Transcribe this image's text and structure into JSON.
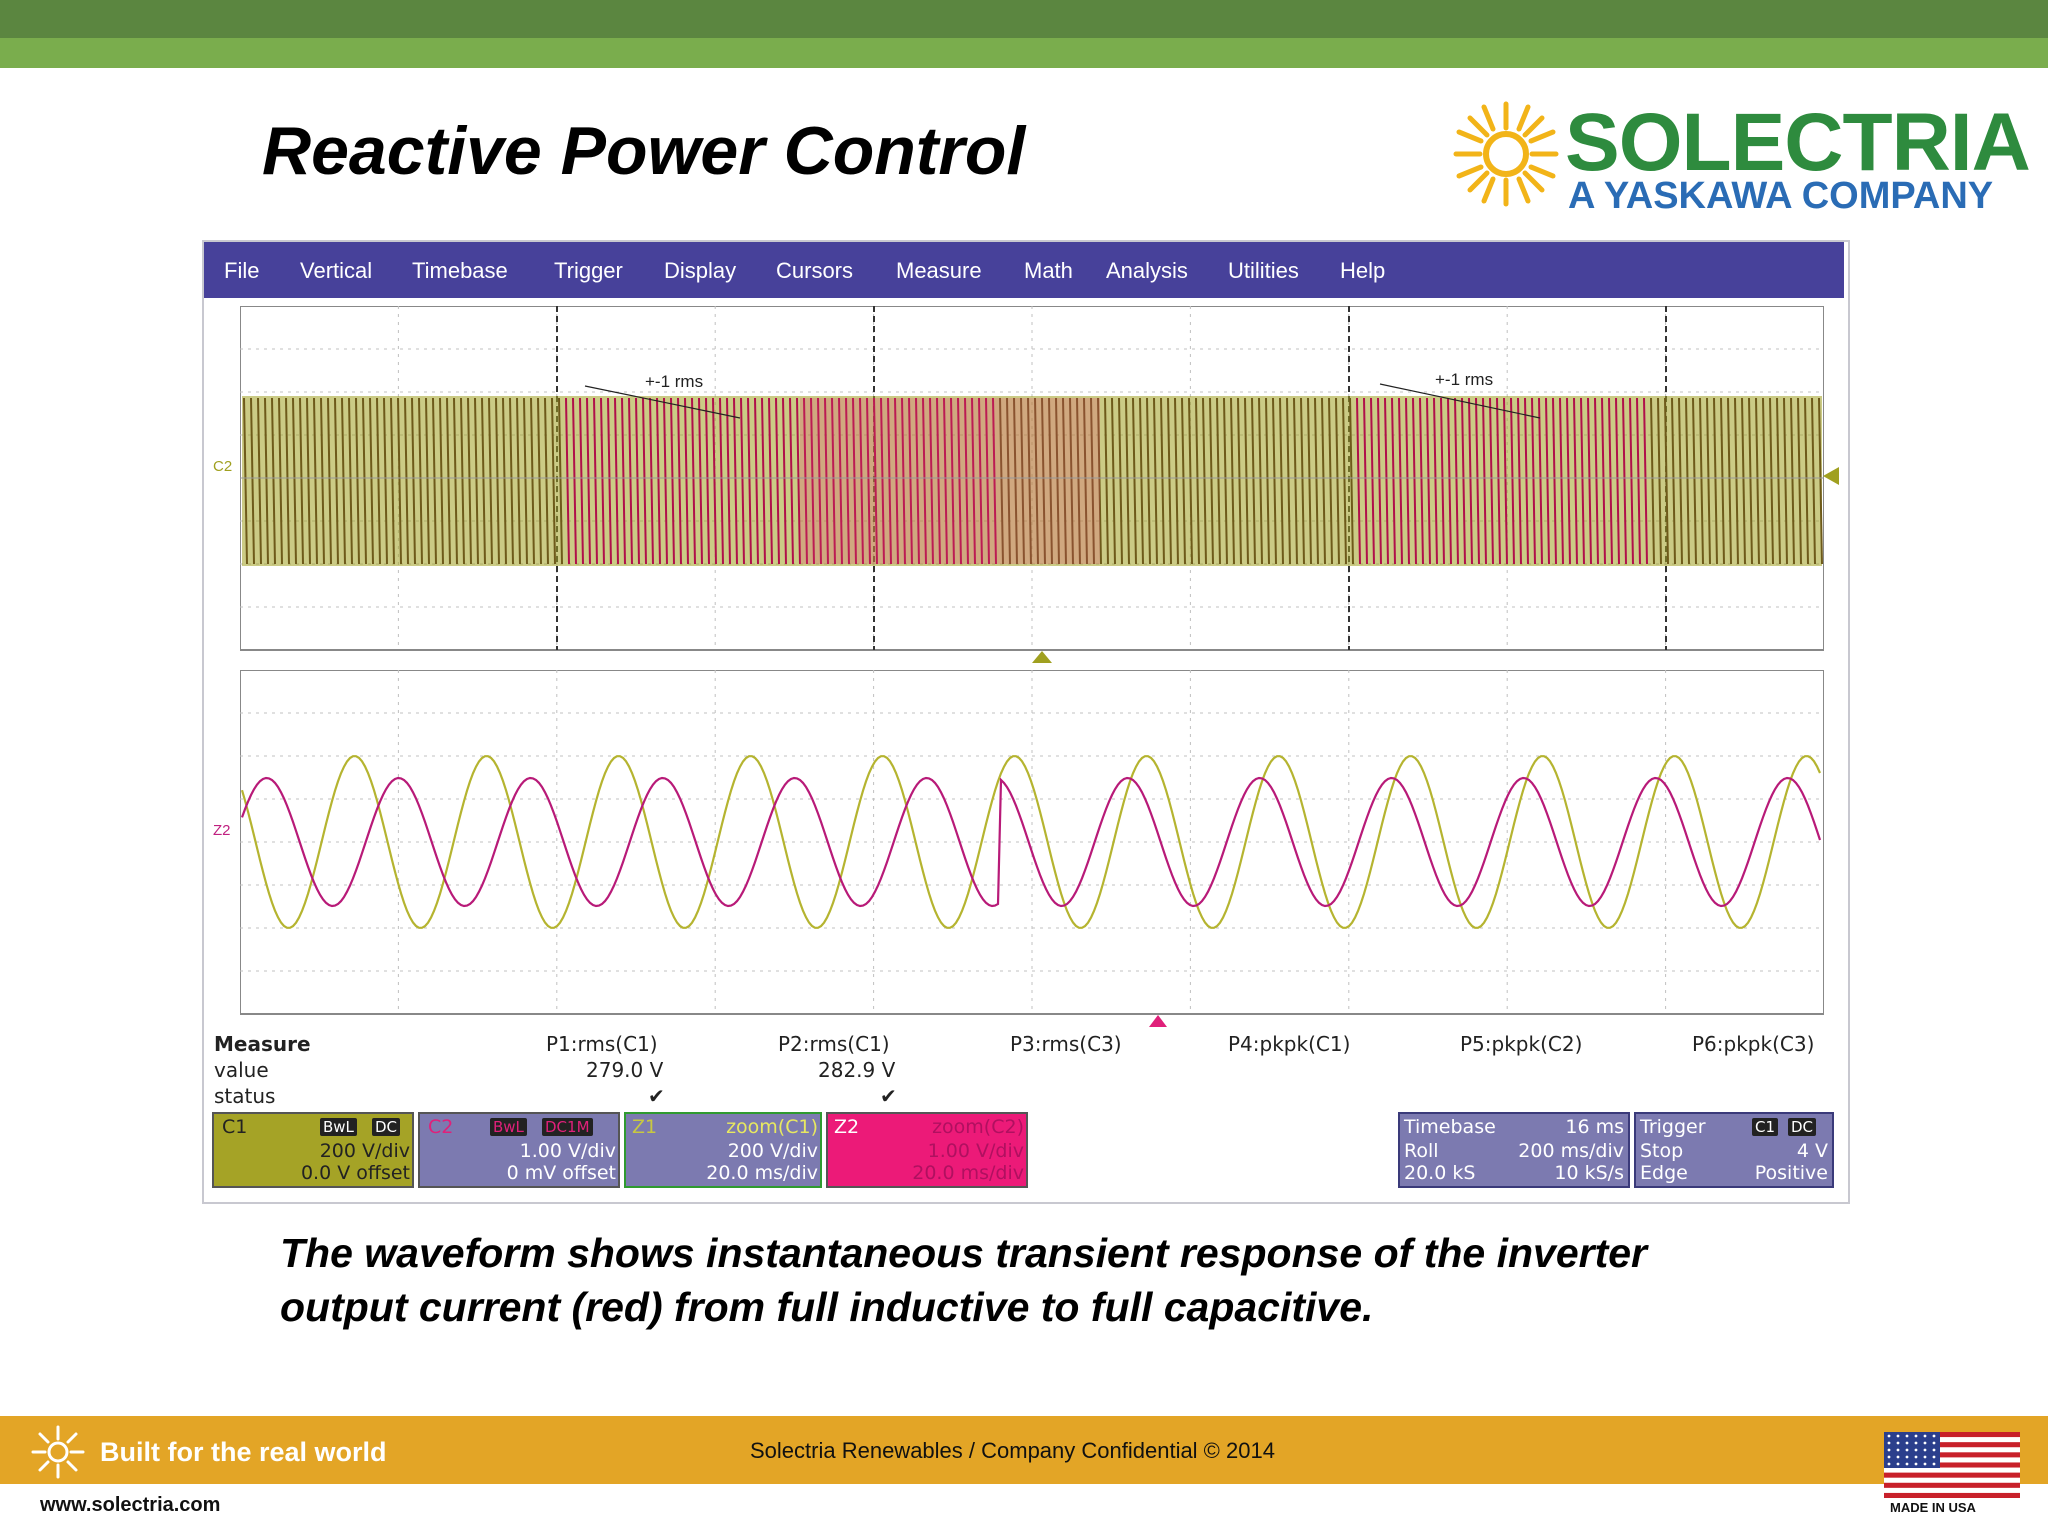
{
  "slide": {
    "title": "Reactive Power Control",
    "caption_line1": "The waveform shows instantaneous transient response of the inverter",
    "caption_line2": "output current (red) from full inductive to full capacitive."
  },
  "logo": {
    "name": "SOLECTRIA",
    "tagline": "A YASKAWA COMPANY",
    "sun_color": "#f2b418",
    "name_color": "#2e8b3e",
    "tag_color": "#2a6cb5"
  },
  "menu": [
    "File",
    "Vertical",
    "Timebase",
    "Trigger",
    "Display",
    "Cursors",
    "Measure",
    "Math",
    "Analysis",
    "Utilities",
    "Help"
  ],
  "plot": {
    "upper_label": "C2",
    "lower_label": "Z2",
    "annotation": "+-1 rms",
    "colors": {
      "ch_yellow": "#a0a020",
      "ch_red": "#b0104a",
      "ch_pink": "#c02080",
      "grid": "#b0b0b0"
    }
  },
  "measure": {
    "title": "Measure",
    "row_value": "value",
    "row_status": "status",
    "columns": [
      {
        "name": "P1:rms(C1)",
        "value": "279.0 V",
        "status": "✔"
      },
      {
        "name": "P2:rms(C1)",
        "value": "282.9 V",
        "status": "✔"
      },
      {
        "name": "P3:rms(C3)",
        "value": "",
        "status": ""
      },
      {
        "name": "P4:pkpk(C1)",
        "value": "",
        "status": ""
      },
      {
        "name": "P5:pkpk(C2)",
        "value": "",
        "status": ""
      },
      {
        "name": "P6:pkpk(C3)",
        "value": "",
        "status": ""
      }
    ]
  },
  "channels": [
    {
      "name": "C1",
      "tags": [
        "BwL",
        "DC"
      ],
      "scale": "200 V/div",
      "offset": "0.0 V offset"
    },
    {
      "name": "C2",
      "tags": [
        "BwL",
        "DC1M"
      ],
      "scale": "1.00 V/div",
      "offset": "0 mV offset"
    },
    {
      "name": "Z1",
      "tags": [
        "zoom(C1)"
      ],
      "scale": "200 V/div",
      "offset": "20.0 ms/div"
    },
    {
      "name": "Z2",
      "tags": [
        "zoom(C2)"
      ],
      "scale": "1.00 V/div",
      "offset": "20.0 ms/div"
    }
  ],
  "timebase": {
    "label": "Timebase",
    "delay": "16 ms",
    "mode": "Roll",
    "rate": "200 ms/div",
    "samples": "20.0 kS",
    "srate": "10 kS/s"
  },
  "trigger": {
    "label": "Trigger",
    "tags": [
      "C1",
      "DC"
    ],
    "state": "Stop",
    "level": "4 V",
    "type": "Edge",
    "slope": "Positive"
  },
  "footer": {
    "slogan": "Built for the real world",
    "confidential": "Solectria Renewables / Company Confidential © 2014",
    "url": "www.solectria.com",
    "flag_text": "MADE IN USA"
  }
}
